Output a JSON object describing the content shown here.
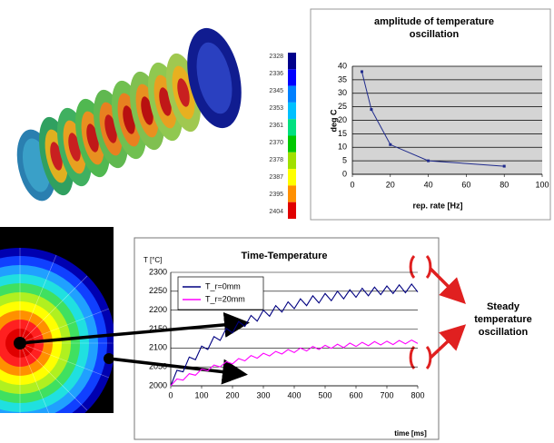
{
  "colorbar": {
    "ticks": [
      2328,
      2336,
      2345,
      2353,
      2361,
      2370,
      2378,
      2387,
      2395,
      2404
    ],
    "colors": [
      "#00008b",
      "#0000ff",
      "#0080ff",
      "#00c0ff",
      "#00e080",
      "#00c800",
      "#a0e000",
      "#ffff00",
      "#ff9000",
      "#e00000"
    ]
  },
  "annotation": "Steady temperature oscillation",
  "chart_data": [
    {
      "type": "line",
      "title": "amplitude of temperature oscillation",
      "xlabel": "rep. rate [Hz]",
      "ylabel": "deg C",
      "x": [
        5,
        10,
        20,
        40,
        80
      ],
      "values": [
        38,
        24,
        11,
        5,
        3
      ],
      "color": "#1f2a8c",
      "xlim": [
        0,
        100
      ],
      "xticks": [
        0,
        20,
        40,
        60,
        80,
        100
      ],
      "ylim": [
        0,
        40
      ],
      "yticks": [
        0,
        5,
        10,
        15,
        20,
        25,
        30,
        35,
        40
      ],
      "grid": true
    },
    {
      "type": "line",
      "title": "Time-Temperature",
      "xlabel": "time [ms]",
      "ylabel": "T [°C]",
      "x": [
        0,
        20,
        40,
        60,
        80,
        100,
        120,
        140,
        160,
        180,
        200,
        220,
        240,
        260,
        280,
        300,
        320,
        340,
        360,
        380,
        400,
        420,
        440,
        460,
        480,
        500,
        520,
        540,
        560,
        580,
        600,
        620,
        640,
        660,
        680,
        700,
        720,
        740,
        760,
        780,
        800
      ],
      "series": [
        {
          "name": "T_r=0mm",
          "color": "#000080",
          "values": [
            2000,
            2041,
            2037,
            2076,
            2069,
            2105,
            2096,
            2130,
            2120,
            2152,
            2140,
            2170,
            2157,
            2186,
            2171,
            2200,
            2184,
            2212,
            2195,
            2222,
            2204,
            2230,
            2212,
            2238,
            2219,
            2244,
            2225,
            2250,
            2230,
            2254,
            2234,
            2258,
            2238,
            2261,
            2241,
            2264,
            2244,
            2267,
            2246,
            2269,
            2248
          ]
        },
        {
          "name": "T_r=20mm",
          "color": "#ff00ff",
          "values": [
            2000,
            2018,
            2015,
            2032,
            2028,
            2044,
            2040,
            2055,
            2050,
            2064,
            2058,
            2072,
            2066,
            2080,
            2073,
            2086,
            2079,
            2091,
            2084,
            2096,
            2088,
            2100,
            2092,
            2104,
            2096,
            2107,
            2099,
            2110,
            2101,
            2113,
            2104,
            2115,
            2106,
            2117,
            2108,
            2118,
            2109,
            2120,
            2111,
            2121,
            2112
          ]
        }
      ],
      "xlim": [
        0,
        800
      ],
      "xticks": [
        0,
        100,
        200,
        300,
        400,
        500,
        600,
        700,
        800
      ],
      "ylim": [
        2000,
        2300
      ],
      "yticks": [
        2000,
        2050,
        2100,
        2150,
        2200,
        2250,
        2300
      ],
      "grid": true,
      "legend": "upper left"
    }
  ]
}
